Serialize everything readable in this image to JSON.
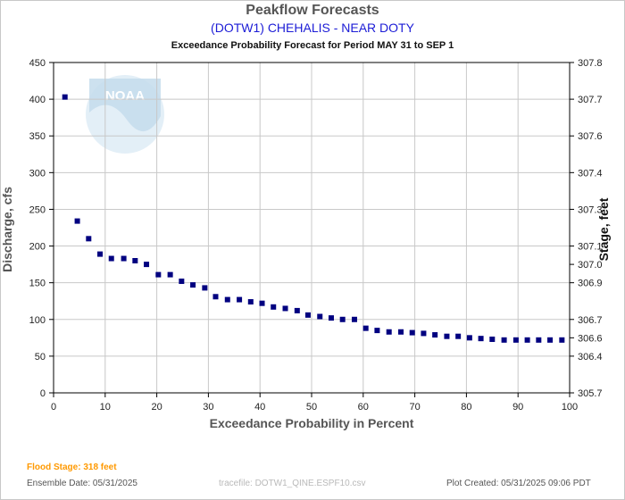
{
  "header": {
    "title": "Peakflow Forecasts",
    "subtitle": "(DOTW1) CHEHALIS - NEAR DOTY",
    "caption": "Exceedance Probability Forecast for Period MAY 31 to SEP 1"
  },
  "footer": {
    "flood_stage": "Flood Stage: 318 feet",
    "ensemble_date": "Ensemble Date: 05/31/2025",
    "tracefile": "tracefile: DOTW1_QINE.ESPF10.csv",
    "plot_created": "Plot Created: 05/31/2025 09:06 PDT"
  },
  "logo": {
    "text": "NOAA"
  },
  "colors": {
    "marker": "#000080",
    "grid": "#c8c8c8",
    "axis": "#000000",
    "logo": "#d9eaf4"
  },
  "chart_data": {
    "type": "scatter",
    "title": "Peakflow Forecasts",
    "xlabel": "Exceedance Probability in Percent",
    "ylabel": "Discharge, cfs",
    "y2label": "Stage, feet",
    "xlim": [
      0,
      100
    ],
    "ylim": [
      0,
      450
    ],
    "x_ticks": [
      0,
      10,
      20,
      30,
      40,
      50,
      60,
      70,
      80,
      90,
      100
    ],
    "y_ticks": [
      0,
      50,
      100,
      150,
      200,
      250,
      300,
      350,
      400,
      450
    ],
    "y2_ticks": [
      "305.7",
      "306.4",
      "306.6",
      "306.7",
      "306.9",
      "307.0",
      "307.1",
      "307.3",
      "307.4",
      "307.6",
      "307.7",
      "307.8"
    ],
    "y2_tick_values": [
      0,
      50,
      75,
      100,
      150,
      175,
      200,
      250,
      300,
      350,
      400,
      450
    ],
    "grid": true,
    "series": [
      {
        "x": [
          2.2,
          4.6,
          6.8,
          9.0,
          11.2,
          13.6,
          15.8,
          18.0,
          20.3,
          22.6,
          24.8,
          27.0,
          29.3,
          31.4,
          33.7,
          36.0,
          38.2,
          40.4,
          42.6,
          44.9,
          47.2,
          49.3,
          51.6,
          53.8,
          56.0,
          58.3,
          60.5,
          62.7,
          65.0,
          67.3,
          69.5,
          71.7,
          73.9,
          76.2,
          78.4,
          80.6,
          82.8,
          85.0,
          87.3,
          89.6,
          91.8,
          94.0,
          96.2,
          98.5
        ],
        "y": [
          403,
          234,
          210,
          189,
          183,
          183,
          180,
          175,
          161,
          161,
          152,
          147,
          143,
          131,
          127,
          127,
          124,
          122,
          117,
          115,
          112,
          106,
          104,
          102,
          100,
          100,
          88,
          85,
          83,
          83,
          82,
          81,
          79,
          77,
          77,
          75,
          74,
          73,
          72,
          72,
          72,
          72,
          72,
          72
        ]
      }
    ]
  }
}
